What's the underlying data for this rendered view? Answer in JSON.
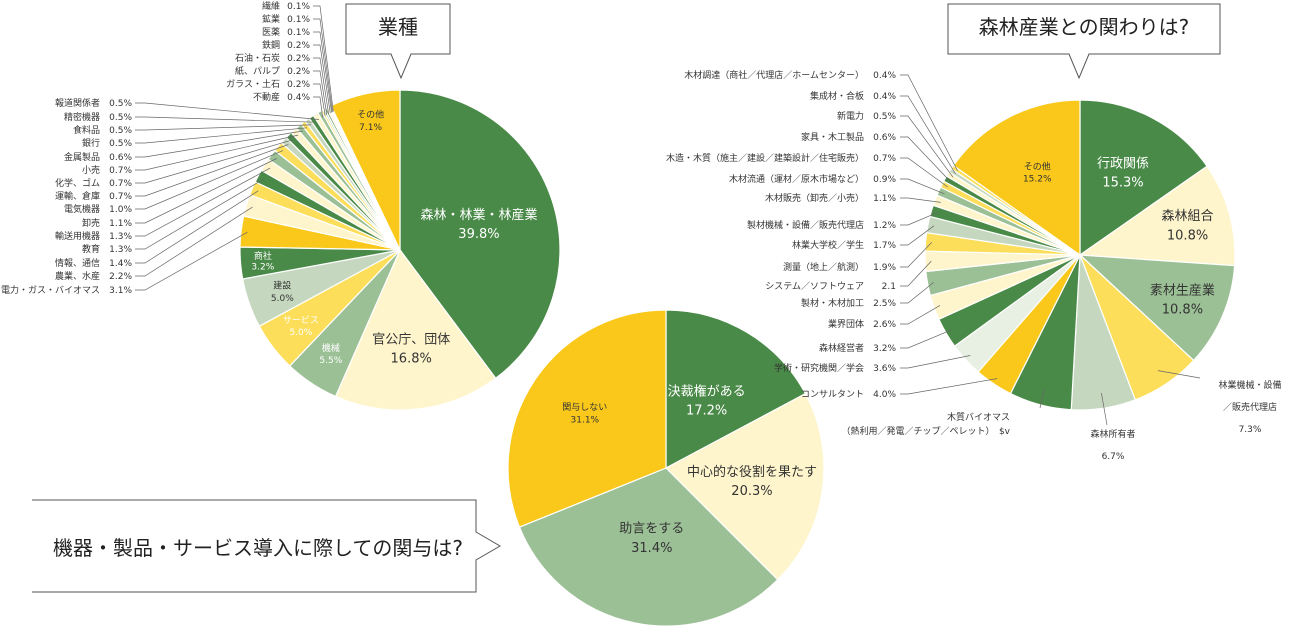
{
  "colors": {
    "dark_green": "#4a8a48",
    "sage": "#9cc096",
    "pale_green": "#c5d8bf",
    "yellow": "#f9c81b",
    "light_yellow": "#fcde5a",
    "cream": "#fff5cc",
    "leader_line": "#666666"
  },
  "chart_data": [
    {
      "id": "industry",
      "type": "pie",
      "title": "業種",
      "slices": [
        {
          "label": "森林・林業・林産業",
          "value": 39.8,
          "value_text": "39.8%",
          "color": "#4a8a48"
        },
        {
          "label": "官公庁、団体",
          "value": 16.8,
          "value_text": "16.8%",
          "color": "#fff5cc"
        },
        {
          "label": "機械",
          "value": 5.5,
          "value_text": "5.5%",
          "color": "#9cc096"
        },
        {
          "label": "サービス",
          "value": 5.0,
          "value_text": "5.0%",
          "color": "#fcde5a"
        },
        {
          "label": "建設",
          "value": 5.0,
          "value_text": "5.0%",
          "color": "#c5d8bf"
        },
        {
          "label": "商社",
          "value": 3.2,
          "value_text": "3.2%",
          "color": "#4a8a48"
        },
        {
          "label": "電力・ガス・バイオマス",
          "value": 3.1,
          "value_text": "3.1%",
          "color": "#f9c81b"
        },
        {
          "label": "農業、水産",
          "value": 2.2,
          "value_text": "2.2%",
          "color": "#fff5cc"
        },
        {
          "label": "情報、通信",
          "value": 1.4,
          "value_text": "1.4%",
          "color": "#fcde5a"
        },
        {
          "label": "教育",
          "value": 1.3,
          "value_text": "1.3%",
          "color": "#4a8a48"
        },
        {
          "label": "輸送用機器",
          "value": 1.3,
          "value_text": "1.3%",
          "color": "#fff5cc"
        },
        {
          "label": "卸売",
          "value": 1.1,
          "value_text": "1.1%",
          "color": "#9cc096"
        },
        {
          "label": "電気機器",
          "value": 1.0,
          "value_text": "1.0%",
          "color": "#fcde5a"
        },
        {
          "label": "運輸、倉庫",
          "value": 0.7,
          "value_text": "0.7%",
          "color": "#c5d8bf"
        },
        {
          "label": "化学、ゴム",
          "value": 0.7,
          "value_text": "0.7%",
          "color": "#4a8a48"
        },
        {
          "label": "小売",
          "value": 0.7,
          "value_text": "0.7%",
          "color": "#fff5cc"
        },
        {
          "label": "金属製品",
          "value": 0.6,
          "value_text": "0.6%",
          "color": "#9cc096"
        },
        {
          "label": "銀行",
          "value": 0.5,
          "value_text": "0.5%",
          "color": "#fcde5a"
        },
        {
          "label": "食料品",
          "value": 0.5,
          "value_text": "0.5%",
          "color": "#c5d8bf"
        },
        {
          "label": "精密機器",
          "value": 0.5,
          "value_text": "0.5%",
          "color": "#4a8a48"
        },
        {
          "label": "報道関係者",
          "value": 0.5,
          "value_text": "0.5%",
          "color": "#fff5cc"
        },
        {
          "label": "不動産",
          "value": 0.4,
          "value_text": "0.4%",
          "color": "#9cc096"
        },
        {
          "label": "ガラス・土石",
          "value": 0.2,
          "value_text": "0.2%",
          "color": "#fcde5a"
        },
        {
          "label": "紙、パルプ",
          "value": 0.2,
          "value_text": "0.2%",
          "color": "#c5d8bf"
        },
        {
          "label": "石油・石炭",
          "value": 0.2,
          "value_text": "0.2%",
          "color": "#4a8a48"
        },
        {
          "label": "鉄鋼",
          "value": 0.2,
          "value_text": "0.2%",
          "color": "#fff5cc"
        },
        {
          "label": "医薬",
          "value": 0.1,
          "value_text": "0.1%",
          "color": "#9cc096"
        },
        {
          "label": "鉱業",
          "value": 0.1,
          "value_text": "0.1%",
          "color": "#fcde5a"
        },
        {
          "label": "繊維",
          "value": 0.1,
          "value_text": "0.1%",
          "color": "#c5d8bf"
        },
        {
          "label": "その他",
          "value": 7.1,
          "value_text": "7.1%",
          "color": "#f9c81b"
        }
      ]
    },
    {
      "id": "involvement",
      "type": "pie",
      "title": "機器・製品・サービス導入に際しての関与は?",
      "slices": [
        {
          "label": "決裁権がある",
          "value": 17.2,
          "value_text": "17.2%",
          "color": "#4a8a48"
        },
        {
          "label": "中心的な役割を果たす",
          "value": 20.3,
          "value_text": "20.3%",
          "color": "#fff5cc"
        },
        {
          "label": "助言をする",
          "value": 31.4,
          "value_text": "31.4%",
          "color": "#9cc096"
        },
        {
          "label": "関与しない",
          "value": 31.1,
          "value_text": "31.1%",
          "color": "#f9c81b"
        }
      ]
    },
    {
      "id": "forest_relation",
      "type": "pie",
      "title": "森林産業との関わりは?",
      "slices": [
        {
          "label": "行政関係",
          "value": 15.3,
          "value_text": "15.3%",
          "color": "#4a8a48"
        },
        {
          "label": "森林組合",
          "value": 10.8,
          "value_text": "10.8%",
          "color": "#fff5cc"
        },
        {
          "label": "素材生産業",
          "value": 10.8,
          "value_text": "10.8%",
          "color": "#9cc096"
        },
        {
          "label": "林業機械・設備／販売代理店",
          "value": 7.3,
          "value_text": "7.3%",
          "color": "#fcde5a"
        },
        {
          "label": "森林所有者",
          "value": 6.7,
          "value_text": "6.7%",
          "color": "#c5d8bf"
        },
        {
          "label": "木質バイオマス（熱利用／発電／チップ／ペレット）",
          "value": 6.5,
          "value_text": "6.5%",
          "color": "#4a8a48"
        },
        {
          "label": "コンサルタント",
          "value": 4.0,
          "value_text": "4.0%",
          "color": "#f9c81b"
        },
        {
          "label": "学術・研究機関／学会",
          "value": 3.6,
          "value_text": "3.6%",
          "color": "#e8f0e4"
        },
        {
          "label": "森林経営者",
          "value": 3.2,
          "value_text": "3.2%",
          "color": "#4a8a48"
        },
        {
          "label": "業界団体",
          "value": 2.6,
          "value_text": "2.6%",
          "color": "#fff5cc"
        },
        {
          "label": "製材・木材加工",
          "value": 2.5,
          "value_text": "2.5%",
          "color": "#9cc096"
        },
        {
          "label": "システム／ソフトウェア",
          "value": 2.1,
          "value_text": "2.1",
          "color": "#fff5cc"
        },
        {
          "label": "測量（地上／航測）",
          "value": 1.9,
          "value_text": "1.9%",
          "color": "#fcde5a"
        },
        {
          "label": "林業大学校／学生",
          "value": 1.7,
          "value_text": "1.7%",
          "color": "#c5d8bf"
        },
        {
          "label": "製材機械・設備／販売代理店",
          "value": 1.2,
          "value_text": "1.2%",
          "color": "#4a8a48"
        },
        {
          "label": "木材販売（卸売／小売）",
          "value": 1.1,
          "value_text": "1.1%",
          "color": "#fff5cc"
        },
        {
          "label": "木材流通（運材／原木市場など）",
          "value": 0.9,
          "value_text": "0.9%",
          "color": "#9cc096"
        },
        {
          "label": "木造・木質（施主／建設／建築設計／住宅販売）",
          "value": 0.7,
          "value_text": "0.7%",
          "color": "#fcde5a"
        },
        {
          "label": "家具・木工製品",
          "value": 0.6,
          "value_text": "0.6%",
          "color": "#4a8a48"
        },
        {
          "label": "新電力",
          "value": 0.5,
          "value_text": "0.5%",
          "color": "#fff5cc"
        },
        {
          "label": "集成材・合板",
          "value": 0.4,
          "value_text": "0.4%",
          "color": "#c5d8bf"
        },
        {
          "label": "木材調達（商社／代理店／ホームセンター）",
          "value": 0.4,
          "value_text": "0.4%",
          "color": "#fcde5a"
        },
        {
          "label": "その他",
          "value": 15.2,
          "value_text": "15.2%",
          "color": "#f9c81b"
        }
      ]
    }
  ]
}
